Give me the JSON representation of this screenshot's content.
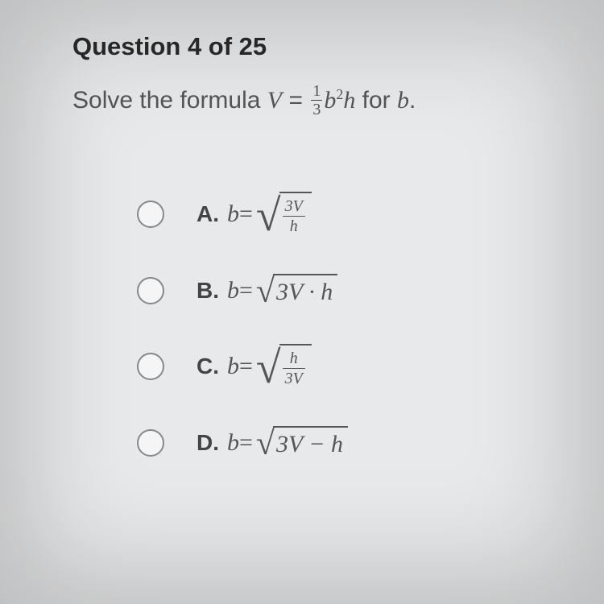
{
  "heading": "Question 4 of 25",
  "prompt": {
    "lead": "Solve the formula ",
    "var_V": "V",
    "eq": " = ",
    "frac_num": "1",
    "frac_den": "3",
    "b": "b",
    "sq": "2",
    "h": "h",
    "tail": " for ",
    "solve_for": "b",
    "period": "."
  },
  "options": {
    "A": {
      "label": "A.",
      "lhs_b": "b",
      "eq": " = ",
      "frac_num": "3V",
      "frac_den": "h"
    },
    "B": {
      "label": "B.",
      "lhs_b": "b",
      "eq": " = ",
      "inner": "3V · h"
    },
    "C": {
      "label": "C.",
      "lhs_b": "b",
      "eq": " = ",
      "frac_num": "h",
      "frac_den": "3V"
    },
    "D": {
      "label": "D.",
      "lhs_b": "b",
      "eq": " = ",
      "inner": "3V − h"
    }
  },
  "colors": {
    "background": "#e8e9ea",
    "text": "#3a3a3a",
    "heading": "#2b2b2b",
    "radio_border": "#888"
  },
  "typography": {
    "heading_fontsize": 31,
    "prompt_fontsize": 30,
    "option_label_fontsize": 28,
    "math_fontsize": 30
  }
}
